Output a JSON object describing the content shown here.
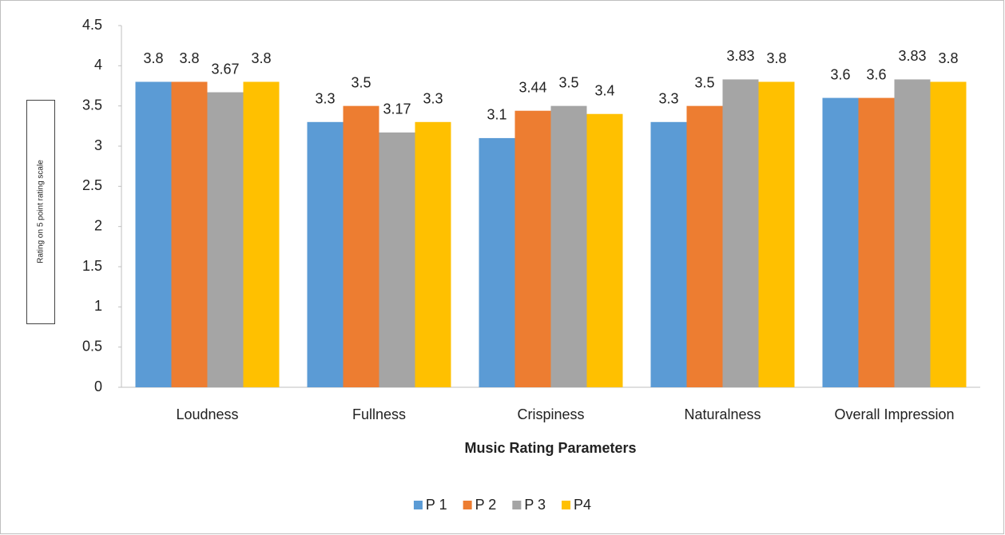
{
  "chart_data": {
    "type": "bar",
    "y_label": "Rating on 5 point rating scale",
    "x_label": "Music Rating Parameters",
    "categories": [
      "Loudness",
      "Fullness",
      "Crispiness",
      "Naturalness",
      "Overall Impression"
    ],
    "series": [
      {
        "name": "P 1",
        "color": "#5b9bd5",
        "values": [
          3.8,
          3.3,
          3.1,
          3.3,
          3.6
        ]
      },
      {
        "name": "P 2",
        "color": "#ed7d31",
        "values": [
          3.8,
          3.5,
          3.44,
          3.5,
          3.6
        ]
      },
      {
        "name": "P 3",
        "color": "#a5a5a5",
        "values": [
          3.67,
          3.17,
          3.5,
          3.83,
          3.83
        ]
      },
      {
        "name": "P4",
        "color": "#ffc000",
        "values": [
          3.8,
          3.3,
          3.4,
          3.8,
          3.8
        ]
      }
    ],
    "ylim": [
      0,
      4.5
    ],
    "yticks": [
      0,
      0.5,
      1,
      1.5,
      2,
      2.5,
      3,
      3.5,
      4,
      4.5
    ],
    "grid": false,
    "legend": "bottom"
  }
}
